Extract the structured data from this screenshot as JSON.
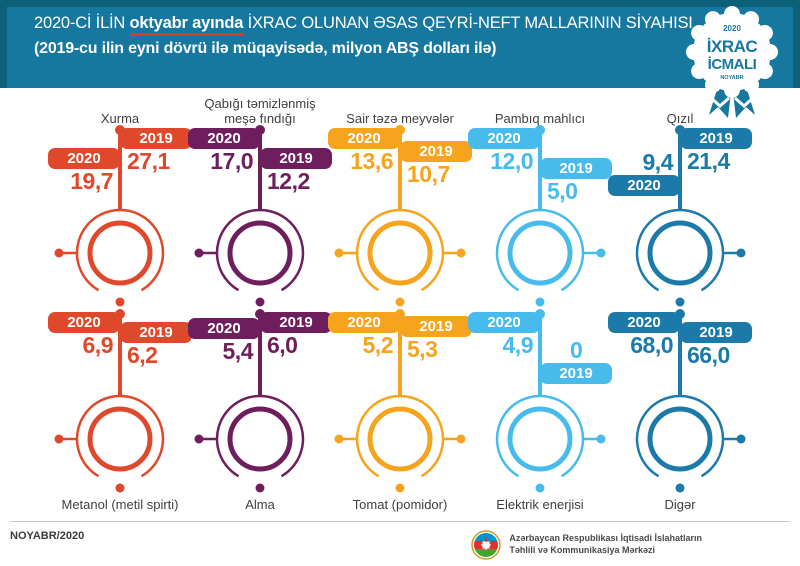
{
  "header": {
    "title_prefix": "2020-Cİ İLİN ",
    "title_highlight": "oktyabr ayında",
    "title_suffix": " İXRAC OLUNAN ƏSAS QEYRİ-NEFT MALLARININ SİYAHISI",
    "subtitle": "(2019-cu ilin eyni dövrü ilə müqayisədə, milyon ABŞ dolları ilə)",
    "badge": {
      "year": "2020",
      "line1": "İXRAC",
      "line2": "İCMALI",
      "month": "NOYABR"
    }
  },
  "years": {
    "y2020": "2020",
    "y2019": "2019"
  },
  "items": [
    {
      "name": "Xurma",
      "v2020": "19,7",
      "v2019": "27,1",
      "color": "#e0482b",
      "icon": "persimmon-icon"
    },
    {
      "name": "Qabığı təmizlənmiş meşə fındığı",
      "v2020": "17,0",
      "v2019": "12,2",
      "color": "#6e1e5c",
      "icon": "hazelnut-icon"
    },
    {
      "name": "Sair təzə meyvələr",
      "v2020": "13,6",
      "v2019": "10,7",
      "color": "#f6a41d",
      "icon": "pear-icon"
    },
    {
      "name": "Pambıq mahlıcı",
      "v2020": "12,0",
      "v2019": "5,0",
      "color": "#47bcec",
      "icon": "cotton-icon"
    },
    {
      "name": "Qızıl",
      "v2020": "9,4",
      "v2019": "21,4",
      "color": "#1b7aa9",
      "icon": "gold-bars-icon"
    },
    {
      "name": "Metanol (metil spirti)",
      "v2020": "6,9",
      "v2019": "6,2",
      "color": "#e0482b",
      "icon": "bottle-icon"
    },
    {
      "name": "Alma",
      "v2020": "5,4",
      "v2019": "6,0",
      "color": "#6e1e5c",
      "icon": "apple-icon"
    },
    {
      "name": "Tomat (pomidor)",
      "v2020": "5,2",
      "v2019": "5,3",
      "color": "#f6a41d",
      "icon": "tomato-icon"
    },
    {
      "name": "Elektrik enerjisi",
      "v2020": "4,9",
      "v2019": "0",
      "color": "#47bcec",
      "icon": "lightbulb-icon"
    },
    {
      "name": "Digər",
      "v2020": "68,0",
      "v2019": "66,0",
      "color": "#1b7aa9",
      "icon": "containers-icon"
    }
  ],
  "footer": {
    "date": "NOYABR/2020",
    "org_line1": "Azərbaycan Respublikası İqtisadi İslahatların",
    "org_line2": "Təhlili və Kommunikasiya Mərkəzi"
  },
  "colors": {
    "frame": "#0c6178",
    "band": "#16779f",
    "underline": "#d93a2b"
  },
  "chart_data": {
    "type": "bar",
    "title": "2020-ci ilin oktyabr ayında ixrac olunan əsas qeyri-neft mallarının siyahısı",
    "subtitle": "2019-cu ilin eyni dövrü ilə müqayisədə, milyon ABŞ dolları ilə",
    "categories": [
      "Xurma",
      "Qabığı təmizlənmiş meşə fındığı",
      "Sair təzə meyvələr",
      "Pambıq mahlıcı",
      "Qızıl",
      "Metanol (metil spirti)",
      "Alma",
      "Tomat (pomidor)",
      "Elektrik enerjisi",
      "Digər"
    ],
    "series": [
      {
        "name": "2020",
        "values": [
          19.7,
          17.0,
          13.6,
          12.0,
          9.4,
          6.9,
          5.4,
          5.2,
          4.9,
          68.0
        ]
      },
      {
        "name": "2019",
        "values": [
          27.1,
          12.2,
          10.7,
          5.0,
          21.4,
          6.2,
          6.0,
          5.3,
          0,
          66.0
        ]
      }
    ],
    "unit": "milyon ABŞ dolları",
    "legend_position": "per-item flags",
    "grid": false
  }
}
